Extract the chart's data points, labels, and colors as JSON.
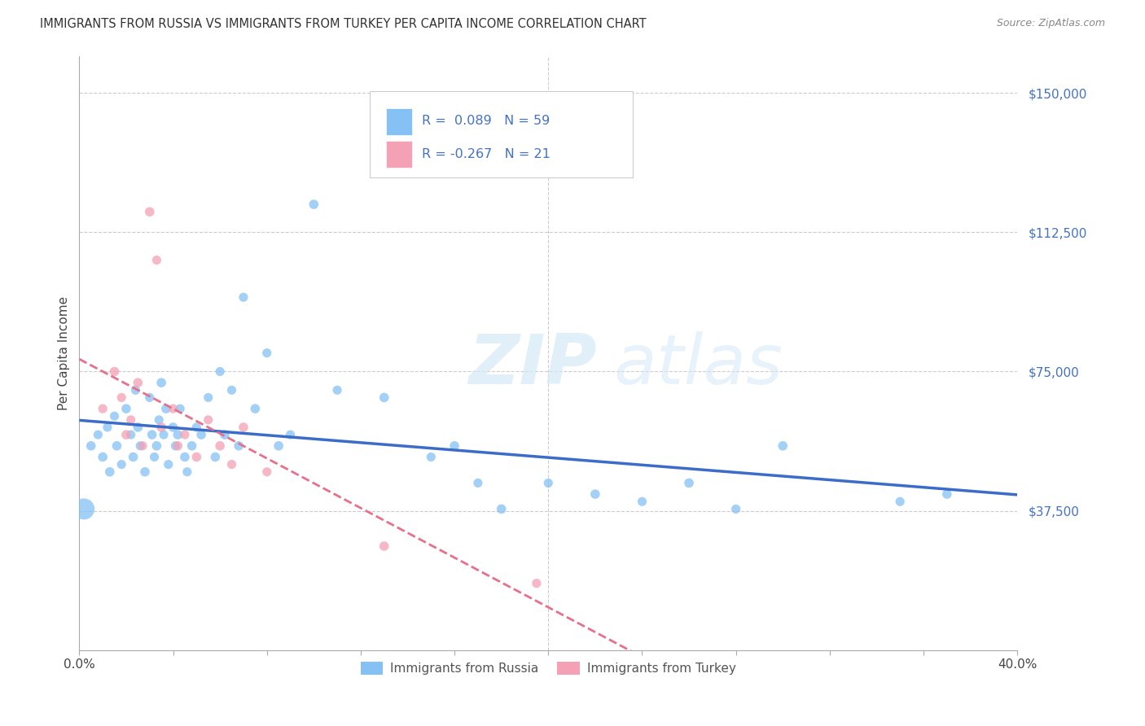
{
  "title": "IMMIGRANTS FROM RUSSIA VS IMMIGRANTS FROM TURKEY PER CAPITA INCOME CORRELATION CHART",
  "source": "Source: ZipAtlas.com",
  "ylabel": "Per Capita Income",
  "xlim": [
    0.0,
    0.4
  ],
  "ylim": [
    0,
    160000
  ],
  "watermark_zip": "ZIP",
  "watermark_atlas": "atlas",
  "russia_R": 0.089,
  "russia_N": 59,
  "turkey_R": -0.267,
  "turkey_N": 21,
  "russia_color": "#85C1F5",
  "turkey_color": "#F4A0B5",
  "russia_line_color": "#3A6CC8",
  "turkey_line_color": "#E8708A",
  "grid_color": "#CCCCCC",
  "bg_color": "#FFFFFF",
  "russia_scatter_x": [
    0.005,
    0.008,
    0.01,
    0.012,
    0.013,
    0.015,
    0.016,
    0.018,
    0.02,
    0.022,
    0.023,
    0.024,
    0.025,
    0.026,
    0.028,
    0.03,
    0.031,
    0.032,
    0.033,
    0.034,
    0.035,
    0.036,
    0.037,
    0.038,
    0.04,
    0.041,
    0.042,
    0.043,
    0.045,
    0.046,
    0.048,
    0.05,
    0.052,
    0.055,
    0.058,
    0.06,
    0.062,
    0.065,
    0.068,
    0.07,
    0.075,
    0.08,
    0.085,
    0.09,
    0.1,
    0.11,
    0.13,
    0.15,
    0.16,
    0.17,
    0.18,
    0.2,
    0.22,
    0.24,
    0.26,
    0.28,
    0.3,
    0.35,
    0.37
  ],
  "russia_scatter_y": [
    55000,
    58000,
    52000,
    60000,
    48000,
    63000,
    55000,
    50000,
    65000,
    58000,
    52000,
    70000,
    60000,
    55000,
    48000,
    68000,
    58000,
    52000,
    55000,
    62000,
    72000,
    58000,
    65000,
    50000,
    60000,
    55000,
    58000,
    65000,
    52000,
    48000,
    55000,
    60000,
    58000,
    68000,
    52000,
    75000,
    58000,
    70000,
    55000,
    95000,
    65000,
    80000,
    55000,
    58000,
    120000,
    70000,
    68000,
    52000,
    55000,
    45000,
    38000,
    45000,
    42000,
    40000,
    45000,
    38000,
    55000,
    40000,
    42000
  ],
  "russia_scatter_size": [
    70,
    65,
    70,
    65,
    70,
    65,
    70,
    65,
    70,
    65,
    70,
    65,
    70,
    65,
    70,
    65,
    70,
    65,
    70,
    65,
    70,
    65,
    70,
    65,
    70,
    65,
    70,
    65,
    70,
    65,
    70,
    65,
    70,
    65,
    70,
    65,
    70,
    65,
    70,
    65,
    70,
    65,
    70,
    65,
    70,
    65,
    70,
    65,
    70,
    65,
    70,
    65,
    70,
    65,
    70,
    65,
    70,
    65,
    70
  ],
  "russia_big_x": [
    0.002
  ],
  "russia_big_y": [
    38000
  ],
  "russia_big_size": [
    350
  ],
  "turkey_scatter_x": [
    0.01,
    0.015,
    0.018,
    0.02,
    0.022,
    0.025,
    0.027,
    0.03,
    0.033,
    0.035,
    0.04,
    0.042,
    0.045,
    0.05,
    0.055,
    0.06,
    0.065,
    0.07,
    0.08,
    0.13,
    0.195
  ],
  "turkey_scatter_y": [
    65000,
    75000,
    68000,
    58000,
    62000,
    72000,
    55000,
    118000,
    105000,
    60000,
    65000,
    55000,
    58000,
    52000,
    62000,
    55000,
    50000,
    60000,
    48000,
    28000,
    18000
  ],
  "turkey_scatter_size": [
    65,
    70,
    65,
    70,
    65,
    70,
    65,
    70,
    65,
    70,
    65,
    70,
    65,
    70,
    65,
    70,
    65,
    70,
    65,
    70,
    65
  ],
  "xtick_positions": [
    0.0,
    0.04,
    0.08,
    0.12,
    0.16,
    0.2,
    0.24,
    0.28,
    0.32,
    0.36,
    0.4
  ],
  "ytick_positions": [
    0,
    37500,
    75000,
    112500,
    150000
  ],
  "ytick_labels": [
    "",
    "$37,500",
    "$75,000",
    "$112,500",
    "$150,000"
  ]
}
